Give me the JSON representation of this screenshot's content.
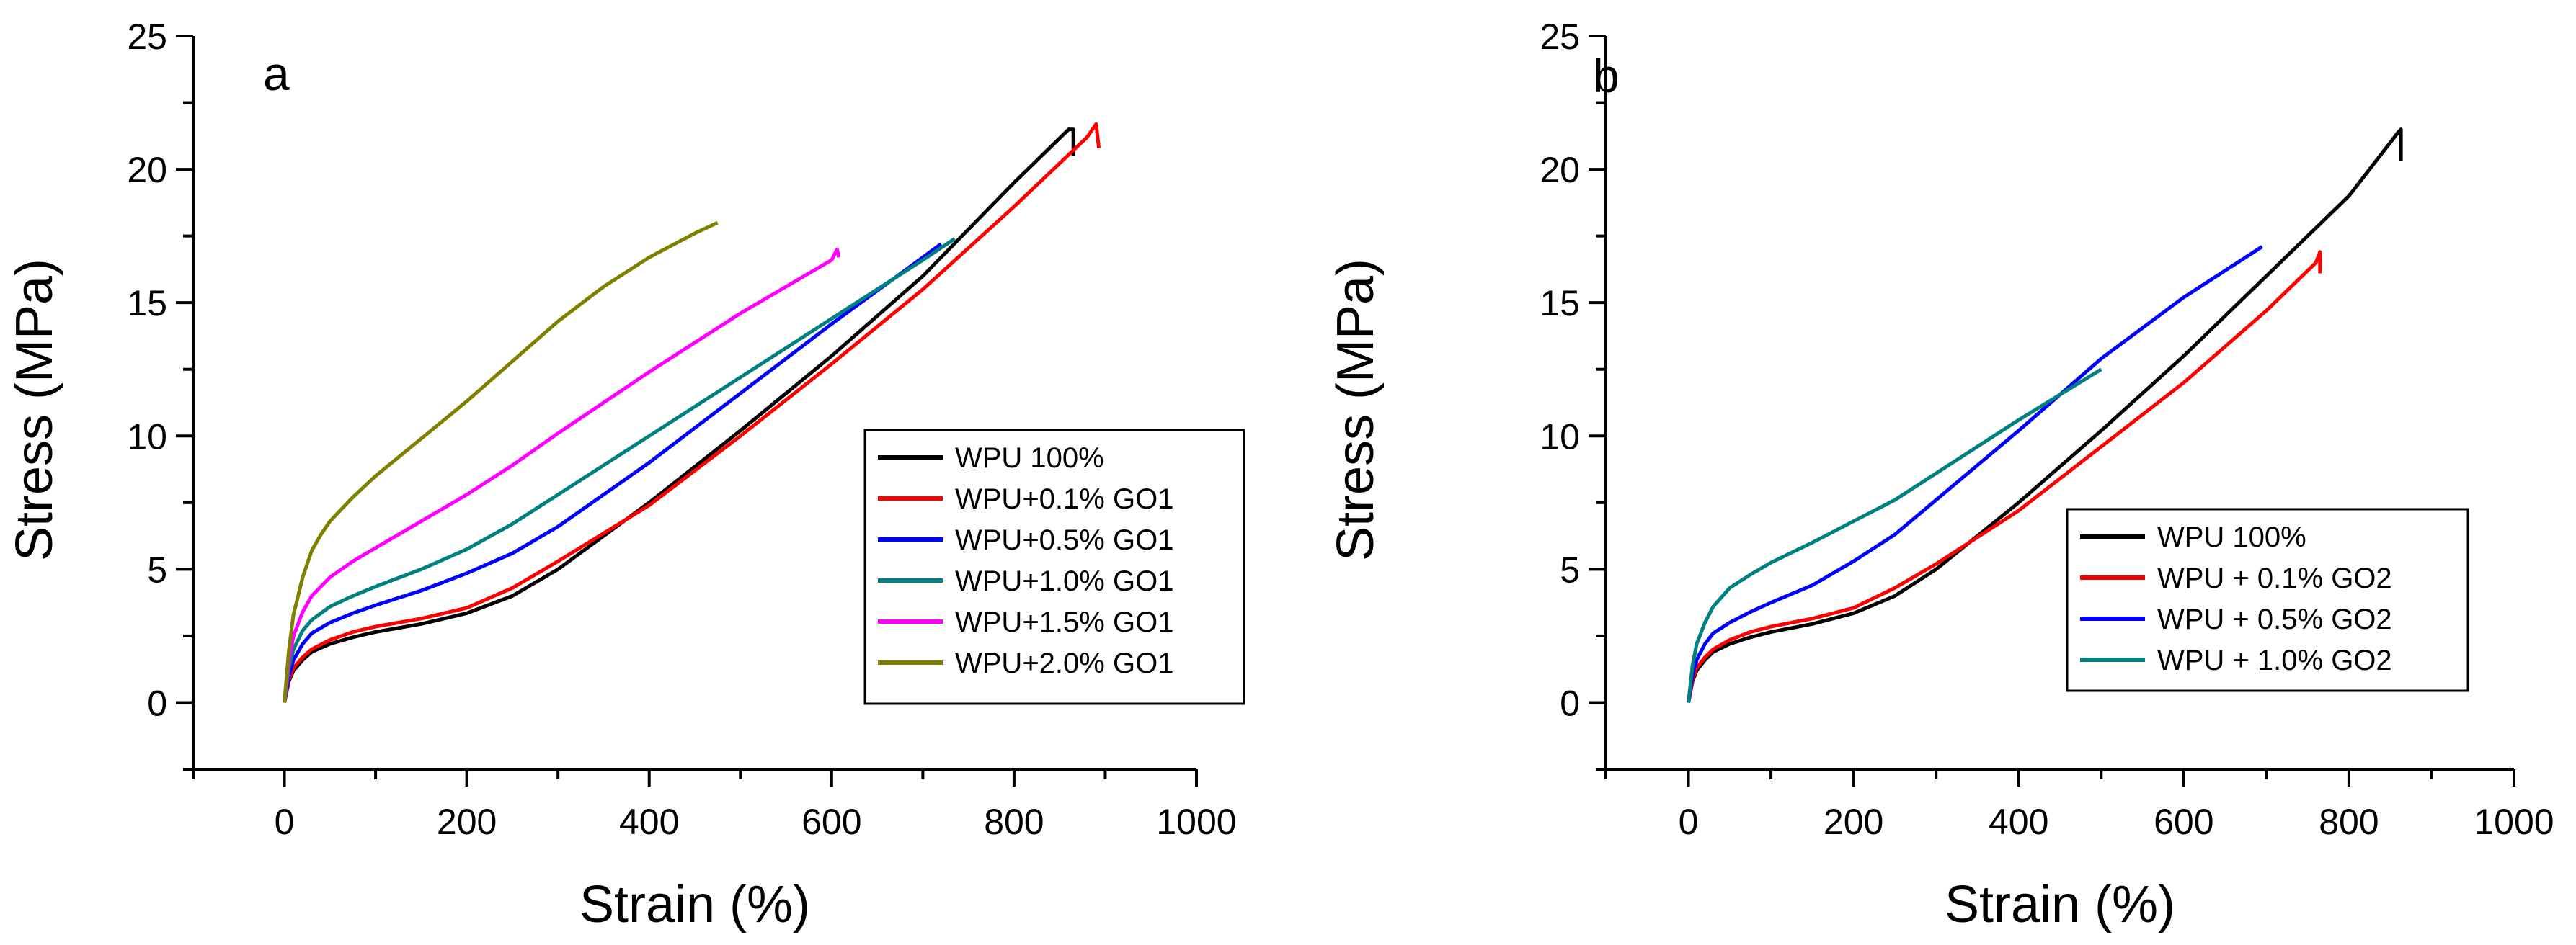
{
  "chart_data": [
    {
      "type": "line",
      "panel_label": "a",
      "xlabel": "Strain (%)",
      "ylabel": "Stress (MPa)",
      "xlim": [
        -100,
        1000
      ],
      "ylim": [
        -2.5,
        25
      ],
      "xticks": [
        0,
        200,
        400,
        600,
        800,
        1000
      ],
      "yticks": [
        0,
        5,
        10,
        15,
        20,
        25
      ],
      "xtick_labels": [
        "0",
        "200",
        "400",
        "600",
        "800",
        "1000"
      ],
      "ytick_labels": [
        "0",
        "5",
        "10",
        "15",
        "20",
        "25"
      ],
      "legend_position": "lower-right",
      "series": [
        {
          "name": "WPU 100%",
          "color": "#000000",
          "x": [
            0,
            5,
            10,
            20,
            30,
            50,
            75,
            100,
            150,
            200,
            250,
            300,
            400,
            500,
            600,
            700,
            800,
            860,
            865,
            865
          ],
          "y": [
            0,
            0.8,
            1.2,
            1.6,
            1.9,
            2.2,
            2.45,
            2.65,
            2.95,
            3.35,
            4.0,
            5.0,
            7.5,
            10.2,
            13.0,
            16.0,
            19.5,
            21.5,
            21.5,
            20.5
          ]
        },
        {
          "name": "WPU+0.1% GO1",
          "color": "#ff0000",
          "x": [
            0,
            5,
            10,
            20,
            30,
            50,
            75,
            100,
            150,
            200,
            250,
            300,
            400,
            500,
            600,
            700,
            800,
            880,
            890,
            893
          ],
          "y": [
            0,
            0.85,
            1.3,
            1.7,
            2.0,
            2.35,
            2.65,
            2.85,
            3.15,
            3.55,
            4.3,
            5.3,
            7.4,
            10.0,
            12.7,
            15.5,
            18.6,
            21.2,
            21.7,
            20.8
          ]
        },
        {
          "name": "WPU+0.5% GO1",
          "color": "#0000ff",
          "x": [
            0,
            5,
            10,
            20,
            30,
            50,
            75,
            100,
            150,
            200,
            250,
            300,
            400,
            500,
            600,
            700,
            720
          ],
          "y": [
            0,
            1.0,
            1.6,
            2.2,
            2.6,
            3.0,
            3.35,
            3.65,
            4.2,
            4.85,
            5.6,
            6.6,
            9.0,
            11.6,
            14.2,
            16.7,
            17.2
          ]
        },
        {
          "name": "WPU+1.0% GO1",
          "color": "#008080",
          "x": [
            0,
            5,
            10,
            20,
            30,
            50,
            75,
            100,
            150,
            200,
            250,
            300,
            400,
            500,
            600,
            700,
            735
          ],
          "y": [
            0,
            1.3,
            2.0,
            2.7,
            3.1,
            3.6,
            4.0,
            4.35,
            5.0,
            5.75,
            6.7,
            7.8,
            10.0,
            12.2,
            14.4,
            16.6,
            17.4
          ]
        },
        {
          "name": "WPU+1.5% GO1",
          "color": "#ff00ff",
          "x": [
            0,
            5,
            10,
            20,
            30,
            50,
            75,
            100,
            150,
            200,
            250,
            300,
            400,
            500,
            600,
            606,
            608
          ],
          "y": [
            0,
            1.6,
            2.5,
            3.4,
            4.0,
            4.7,
            5.3,
            5.8,
            6.8,
            7.8,
            8.9,
            10.1,
            12.4,
            14.6,
            16.6,
            17.0,
            16.7
          ]
        },
        {
          "name": "WPU+2.0% GO1",
          "color": "#808000",
          "x": [
            0,
            5,
            10,
            20,
            30,
            40,
            50,
            75,
            100,
            150,
            200,
            250,
            300,
            350,
            400,
            450,
            475
          ],
          "y": [
            0,
            2.0,
            3.3,
            4.7,
            5.7,
            6.3,
            6.8,
            7.7,
            8.5,
            9.9,
            11.3,
            12.8,
            14.3,
            15.6,
            16.7,
            17.6,
            18.0
          ]
        }
      ]
    },
    {
      "type": "line",
      "panel_label": "b",
      "xlabel": "Strain (%)",
      "ylabel": "Stress (MPa)",
      "xlim": [
        -100,
        1000
      ],
      "ylim": [
        -2.5,
        25
      ],
      "xticks": [
        0,
        200,
        400,
        600,
        800,
        1000
      ],
      "yticks": [
        0,
        5,
        10,
        15,
        20,
        25
      ],
      "xtick_labels": [
        "0",
        "200",
        "400",
        "600",
        "800",
        "1000"
      ],
      "ytick_labels": [
        "0",
        "5",
        "10",
        "15",
        "20",
        "25"
      ],
      "legend_position": "lower-right",
      "series": [
        {
          "name": "WPU 100%",
          "color": "#000000",
          "x": [
            0,
            5,
            10,
            20,
            30,
            50,
            75,
            100,
            150,
            200,
            250,
            300,
            400,
            500,
            600,
            700,
            800,
            860,
            863,
            863
          ],
          "y": [
            0,
            0.8,
            1.2,
            1.6,
            1.9,
            2.2,
            2.45,
            2.65,
            2.95,
            3.35,
            4.0,
            5.0,
            7.5,
            10.2,
            13.0,
            16.0,
            19.0,
            21.4,
            21.5,
            20.3
          ]
        },
        {
          "name": "WPU + 0.1% GO2",
          "color": "#ff0000",
          "x": [
            0,
            5,
            10,
            20,
            30,
            50,
            75,
            100,
            150,
            200,
            250,
            300,
            400,
            500,
            600,
            700,
            760,
            765,
            765
          ],
          "y": [
            0,
            0.85,
            1.3,
            1.7,
            2.0,
            2.35,
            2.65,
            2.85,
            3.15,
            3.55,
            4.3,
            5.2,
            7.2,
            9.6,
            12.0,
            14.7,
            16.5,
            16.9,
            16.1
          ]
        },
        {
          "name": "WPU + 0.5% GO2",
          "color": "#0000ff",
          "x": [
            0,
            5,
            10,
            20,
            30,
            50,
            75,
            100,
            150,
            200,
            250,
            300,
            400,
            500,
            600,
            695
          ],
          "y": [
            0,
            1.0,
            1.6,
            2.2,
            2.6,
            3.0,
            3.4,
            3.75,
            4.4,
            5.3,
            6.3,
            7.6,
            10.2,
            12.9,
            15.2,
            17.1
          ]
        },
        {
          "name": "WPU + 1.0% GO2",
          "color": "#008080",
          "x": [
            0,
            5,
            10,
            20,
            30,
            50,
            75,
            100,
            150,
            200,
            250,
            300,
            400,
            500
          ],
          "y": [
            0,
            1.4,
            2.2,
            3.0,
            3.6,
            4.3,
            4.8,
            5.25,
            6.0,
            6.8,
            7.6,
            8.6,
            10.6,
            12.5
          ]
        }
      ]
    }
  ]
}
